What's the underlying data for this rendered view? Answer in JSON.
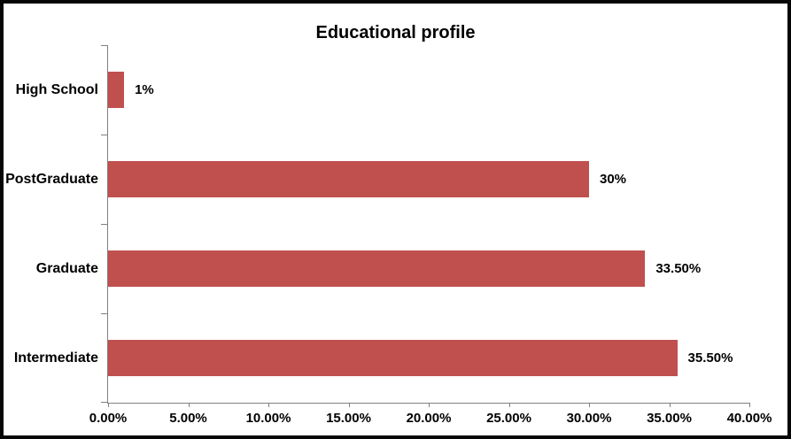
{
  "chart_data": {
    "type": "bar",
    "orientation": "horizontal",
    "title": "Educational profile",
    "categories": [
      "High School",
      "PostGraduate",
      "Graduate",
      "Intermediate"
    ],
    "values": [
      1,
      30,
      33.5,
      35.5
    ],
    "data_labels": [
      "1%",
      "30%",
      "33.50%",
      "35.50%"
    ],
    "x_ticks": [
      "0.00%",
      "5.00%",
      "10.00%",
      "15.00%",
      "20.00%",
      "25.00%",
      "30.00%",
      "35.00%",
      "40.00%"
    ],
    "x_tick_values": [
      0,
      5,
      10,
      15,
      20,
      25,
      30,
      35,
      40
    ],
    "xlim": [
      0,
      40
    ],
    "xlabel": "",
    "ylabel": "",
    "grid": false,
    "legend": false,
    "bar_color": "#C0504D",
    "axis_color": "#808080",
    "text_color": "#000000",
    "frame_color": "#060606",
    "background_color": "#ffffff"
  }
}
